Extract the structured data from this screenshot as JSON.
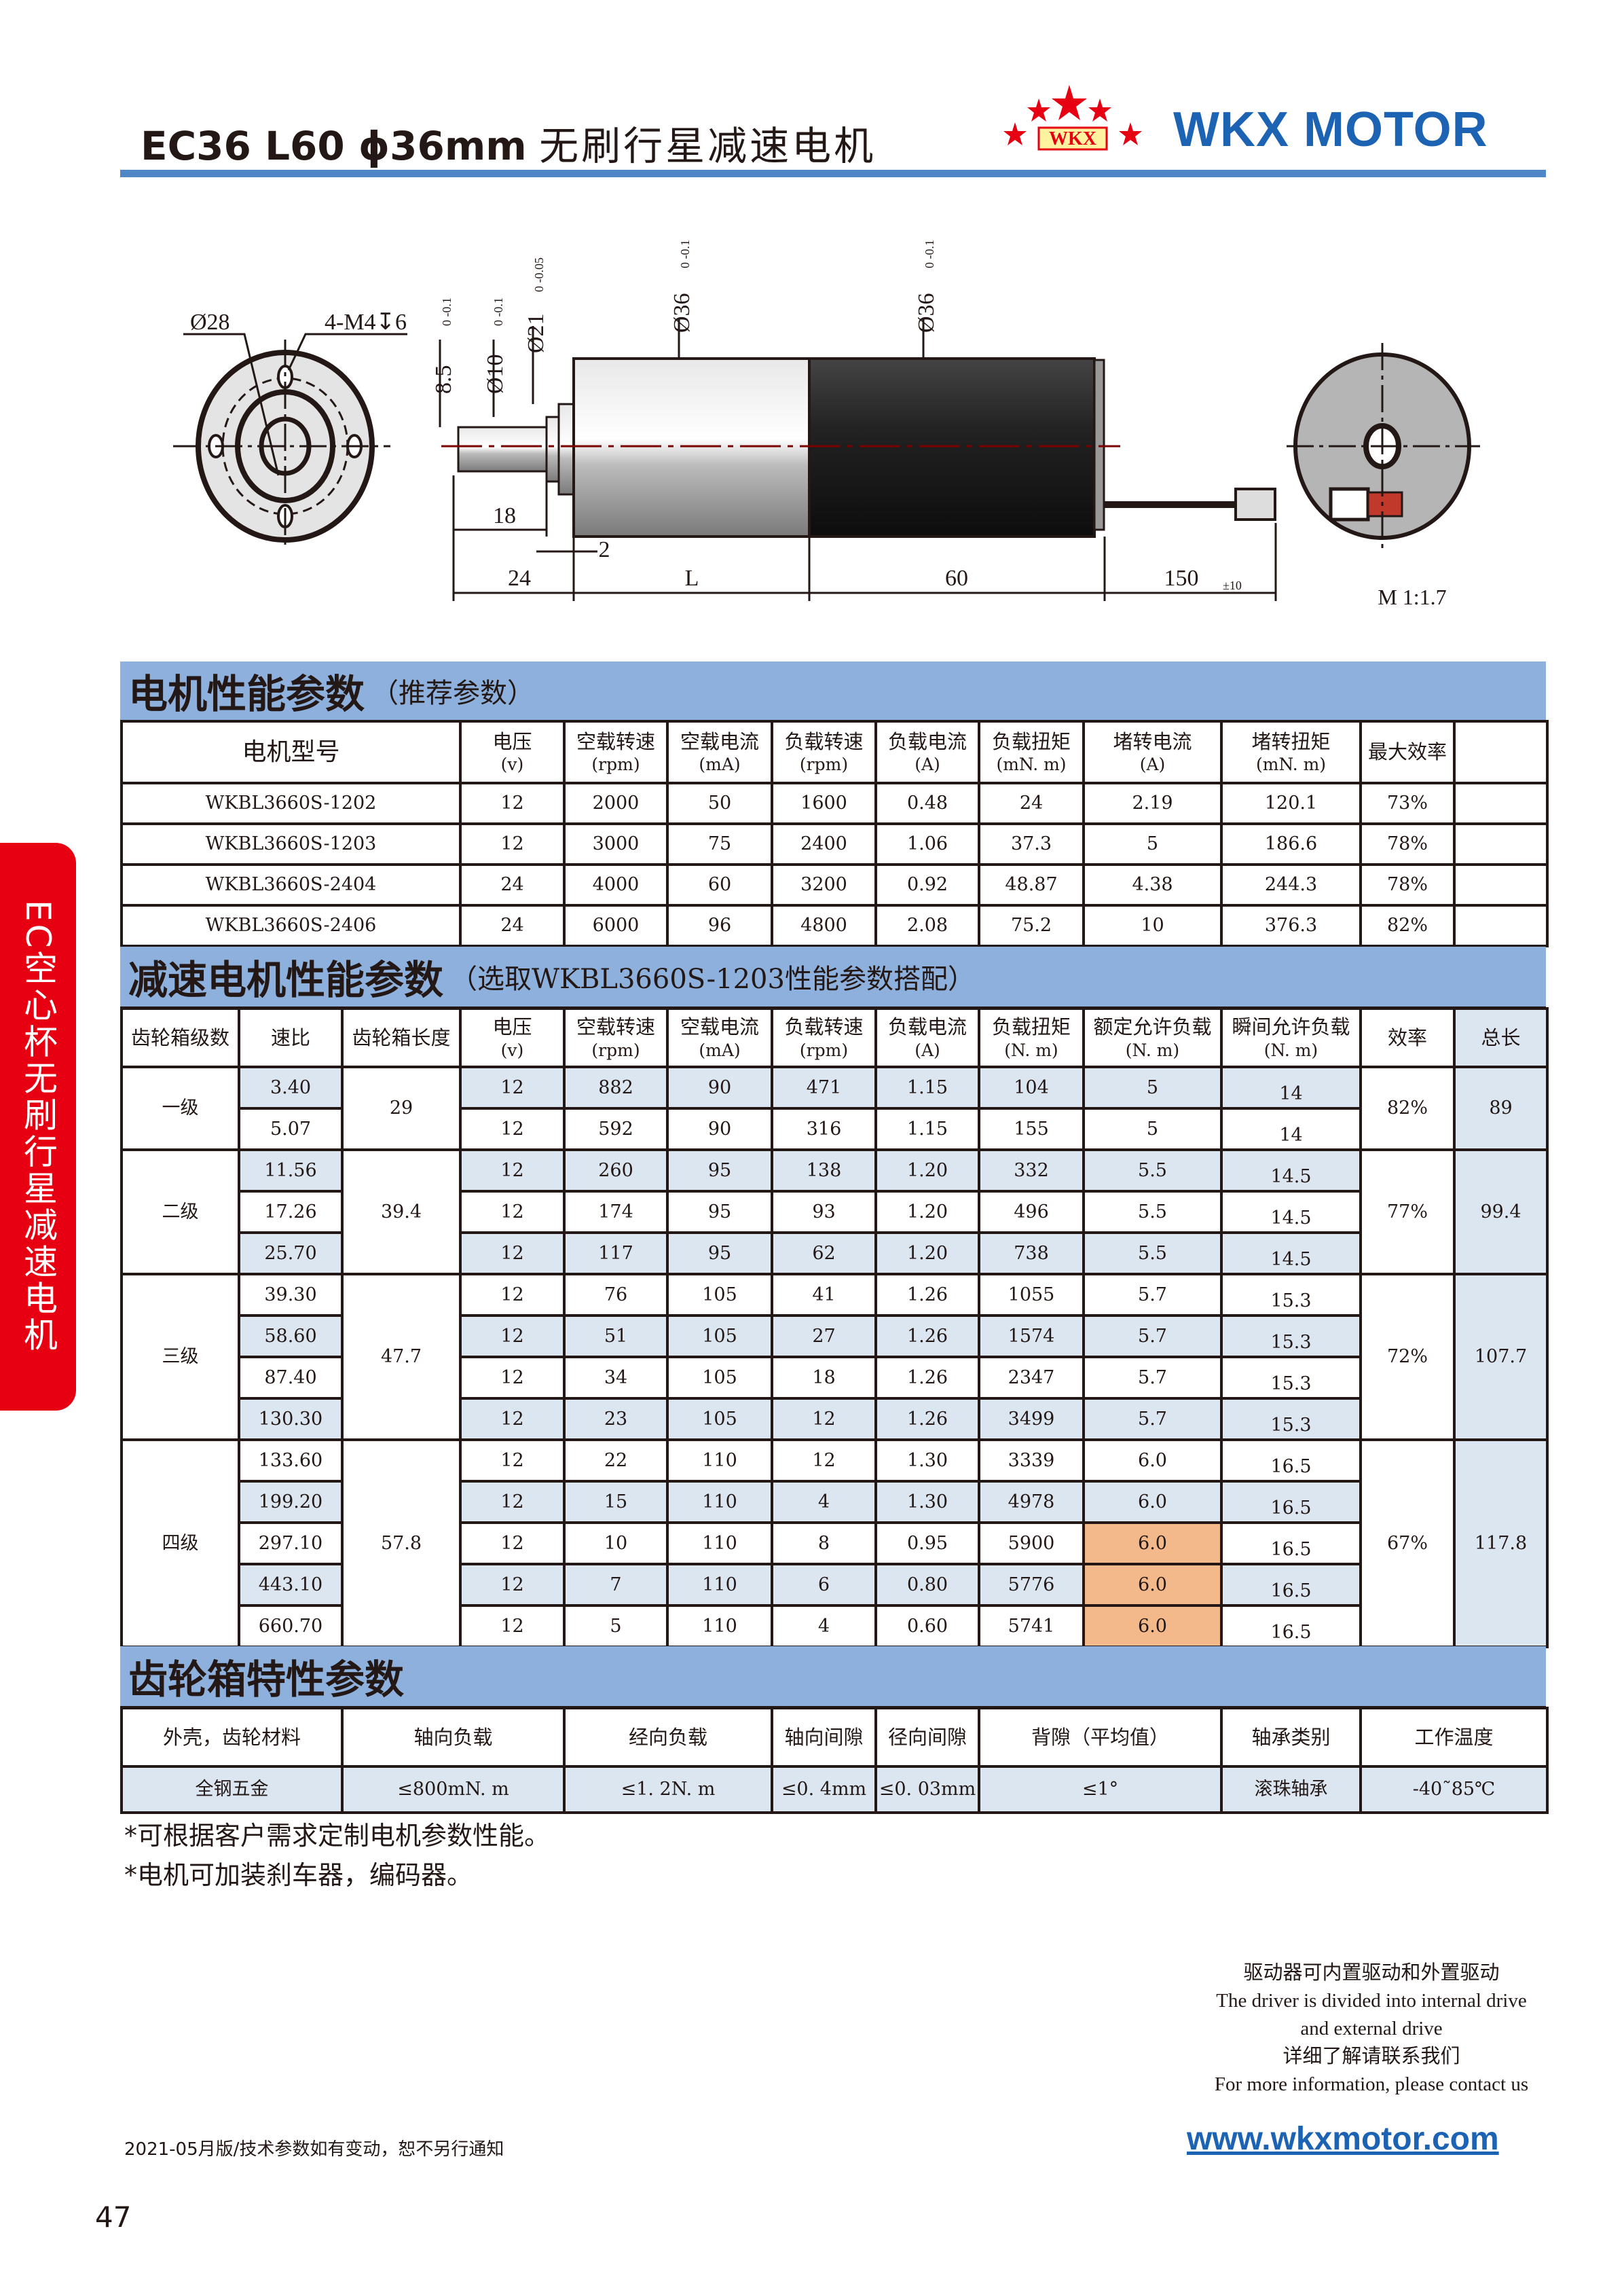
{
  "header": {
    "title_en": "EC36 L60 ϕ36mm",
    "title_cn": "无刷行星减速电机",
    "brand": "WKX MOTOR",
    "logo_text": "WKX",
    "brand_color": "#1d63b4",
    "rule_color": "#4f86c6"
  },
  "side_tab": {
    "label": "EC空心杯无刷行星减速电机",
    "color": "#e60012"
  },
  "drawing": {
    "front_dia": "Ø28",
    "front_holes": "4-M4↧6",
    "shaft_flat": "8.5",
    "shaft_flat_tol": "0 -0.1",
    "shaft_dia": "Ø10",
    "shaft_dia_tol": "0 -0.1",
    "pilot_dia": "Ø21",
    "pilot_dia_tol": "0 -0.05",
    "gearbox_dia": "Ø36",
    "gearbox_dia_tol": "0 -0.1",
    "motor_dia": "Ø36",
    "motor_dia_tol": "0 -0.1",
    "shaft_len": "18",
    "flange_len": "2",
    "front_len": "24",
    "gearbox_len": "L",
    "motor_len": "60",
    "wire_len": "150",
    "wire_tol": "±10",
    "scale": "M 1:1.7"
  },
  "motor_section": {
    "title": "电机性能参数",
    "subtitle": "（推荐参数）",
    "headers": [
      [
        "电机型号",
        ""
      ],
      [
        "电压",
        "(v)"
      ],
      [
        "空载转速",
        "(rpm)"
      ],
      [
        "空载电流",
        "(mA)"
      ],
      [
        "负载转速",
        "(rpm)"
      ],
      [
        "负载电流",
        "(A)"
      ],
      [
        "负载扭矩",
        "(mN. m)"
      ],
      [
        "堵转电流",
        "(A)"
      ],
      [
        "堵转扭矩",
        "(mN. m)"
      ],
      [
        "最大效率",
        ""
      ],
      [
        "",
        ""
      ]
    ],
    "rows": [
      [
        "WKBL3660S-1202",
        "12",
        "2000",
        "50",
        "1600",
        "0.48",
        "24",
        "2.19",
        "120.1",
        "73%",
        ""
      ],
      [
        "WKBL3660S-1203",
        "12",
        "3000",
        "75",
        "2400",
        "1.06",
        "37.3",
        "5",
        "186.6",
        "78%",
        ""
      ],
      [
        "WKBL3660S-2404",
        "24",
        "4000",
        "60",
        "3200",
        "0.92",
        "48.87",
        "4.38",
        "244.3",
        "78%",
        ""
      ],
      [
        "WKBL3660S-2406",
        "24",
        "6000",
        "96",
        "4800",
        "2.08",
        "75.2",
        "10",
        "376.3",
        "82%",
        ""
      ]
    ]
  },
  "gear_section": {
    "title": "减速电机性能参数",
    "subtitle": "（选取WKBL3660S-1203性能参数搭配）",
    "headers": [
      [
        "齿轮箱级数",
        ""
      ],
      [
        "速比",
        ""
      ],
      [
        "齿轮箱长度",
        ""
      ],
      [
        "电压",
        "(v)"
      ],
      [
        "空载转速",
        "(rpm)"
      ],
      [
        "空载电流",
        "(mA)"
      ],
      [
        "负载转速",
        "(rpm)"
      ],
      [
        "负载电流",
        "(A)"
      ],
      [
        "负载扭矩",
        "(N. m)"
      ],
      [
        "额定允许负载",
        "(N. m)"
      ],
      [
        "瞬间允许负载",
        "(N. m)"
      ],
      [
        "效率",
        ""
      ],
      [
        "总长",
        ""
      ]
    ],
    "groups": [
      {
        "stage": "一级",
        "length": "29",
        "efficiency": "82%",
        "total": "89",
        "rows": [
          [
            "3.40",
            "12",
            "882",
            "90",
            "471",
            "1.15",
            "104",
            "5",
            "14"
          ],
          [
            "5.07",
            "12",
            "592",
            "90",
            "316",
            "1.15",
            "155",
            "5",
            "14"
          ]
        ]
      },
      {
        "stage": "二级",
        "length": "39.4",
        "efficiency": "77%",
        "total": "99.4",
        "rows": [
          [
            "11.56",
            "12",
            "260",
            "95",
            "138",
            "1.20",
            "332",
            "5.5",
            "14.5"
          ],
          [
            "17.26",
            "12",
            "174",
            "95",
            "93",
            "1.20",
            "496",
            "5.5",
            "14.5"
          ],
          [
            "25.70",
            "12",
            "117",
            "95",
            "62",
            "1.20",
            "738",
            "5.5",
            "14.5"
          ]
        ]
      },
      {
        "stage": "三级",
        "length": "47.7",
        "efficiency": "72%",
        "total": "107.7",
        "rows": [
          [
            "39.30",
            "12",
            "76",
            "105",
            "41",
            "1.26",
            "1055",
            "5.7",
            "15.3"
          ],
          [
            "58.60",
            "12",
            "51",
            "105",
            "27",
            "1.26",
            "1574",
            "5.7",
            "15.3"
          ],
          [
            "87.40",
            "12",
            "34",
            "105",
            "18",
            "1.26",
            "2347",
            "5.7",
            "15.3"
          ],
          [
            "130.30",
            "12",
            "23",
            "105",
            "12",
            "1.26",
            "3499",
            "5.7",
            "15.3"
          ]
        ]
      },
      {
        "stage": "四级",
        "length": "57.8",
        "efficiency": "67%",
        "total": "117.8",
        "rows": [
          [
            "133.60",
            "12",
            "22",
            "110",
            "12",
            "1.30",
            "3339",
            "6.0",
            "16.5"
          ],
          [
            "199.20",
            "12",
            "15",
            "110",
            "4",
            "1.30",
            "4978",
            "6.0",
            "16.5"
          ],
          [
            "297.10",
            "12",
            "10",
            "110",
            "8",
            "0.95",
            "5900",
            "6.0",
            "16.5"
          ],
          [
            "443.10",
            "12",
            "7",
            "110",
            "6",
            "0.80",
            "5776",
            "6.0",
            "16.5"
          ],
          [
            "660.70",
            "12",
            "5",
            "110",
            "4",
            "0.60",
            "5741",
            "6.0",
            "16.5"
          ]
        ]
      }
    ],
    "highlight_color": "#f4b98a",
    "highlight_rows": [
      11,
      12,
      13
    ]
  },
  "gearbox_section": {
    "title": "齿轮箱特性参数",
    "headers": [
      "外壳，齿轮材料",
      "轴向负载",
      "经向负载",
      "轴向间隙",
      "径向间隙",
      "背隙（平均值）",
      "轴承类别",
      "工作温度"
    ],
    "values": [
      "全钢五金",
      "≤800mN. m",
      "≤1. 2N. m",
      "≤0. 4mm",
      "≤0. 03mm",
      "≤1°",
      "滚珠轴承",
      "-40˜85℃"
    ]
  },
  "notes": [
    "*可根据客户需求定制电机参数性能。",
    "*电机可加装刹车器，编码器。"
  ],
  "contact": [
    "驱动器可内置驱动和外置驱动",
    "The driver is divided into internal drive",
    "and external drive",
    "详细了解请联系我们",
    "For more information, please contact us"
  ],
  "footer": {
    "date_note": "2021-05月版/技术参数如有变动，恕不另行通知",
    "url": "www.wkxmotor.com",
    "page": "47"
  }
}
